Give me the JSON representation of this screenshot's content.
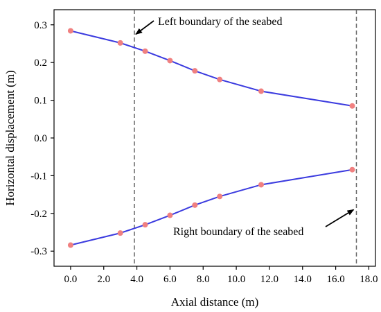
{
  "chart_data": {
    "type": "line",
    "title": "",
    "xlabel": "Axial distance (m)",
    "ylabel": "Horizontal displacement (m)",
    "xlim": [
      -1.0,
      18.4
    ],
    "ylim": [
      -0.34,
      0.34
    ],
    "x_ticks": [
      0,
      2,
      4,
      6,
      8,
      10,
      12,
      14,
      16,
      18
    ],
    "x_tick_labels": [
      "0.0",
      "2.0",
      "4.0",
      "6.0",
      "8.0",
      "10.0",
      "12.0",
      "14.0",
      "16.0",
      "18.0"
    ],
    "y_ticks": [
      0.3,
      0.2,
      0.1,
      0.0,
      -0.1,
      -0.2,
      -0.3
    ],
    "y_tick_labels": [
      "0.3",
      "0.2",
      "0.1",
      "0.0",
      "-0.1",
      "-0.2",
      "-0.3"
    ],
    "grid": false,
    "series": [
      {
        "x": [
          0.0,
          3.0,
          4.5,
          6.0,
          7.5,
          9.0,
          11.5,
          17.0
        ],
        "y": [
          0.284,
          0.252,
          0.23,
          0.205,
          0.178,
          0.155,
          0.124,
          0.085
        ],
        "line_color": "#3b3bdf",
        "marker_color": "#f08080"
      },
      {
        "x": [
          0.0,
          3.0,
          4.5,
          6.0,
          7.5,
          9.0,
          11.5,
          17.0
        ],
        "y": [
          -0.284,
          -0.252,
          -0.23,
          -0.205,
          -0.178,
          -0.155,
          -0.124,
          -0.084
        ],
        "line_color": "#3b3bdf",
        "marker_color": "#f08080"
      }
    ],
    "vlines": [
      3.85,
      17.25
    ],
    "annotations": [
      {
        "text": "Left boundary of the seabed",
        "arrow_to": [
          3.85,
          0.275
        ]
      },
      {
        "text": "Right boundary of the seabed",
        "arrow_to": [
          17.25,
          -0.19
        ]
      }
    ]
  }
}
